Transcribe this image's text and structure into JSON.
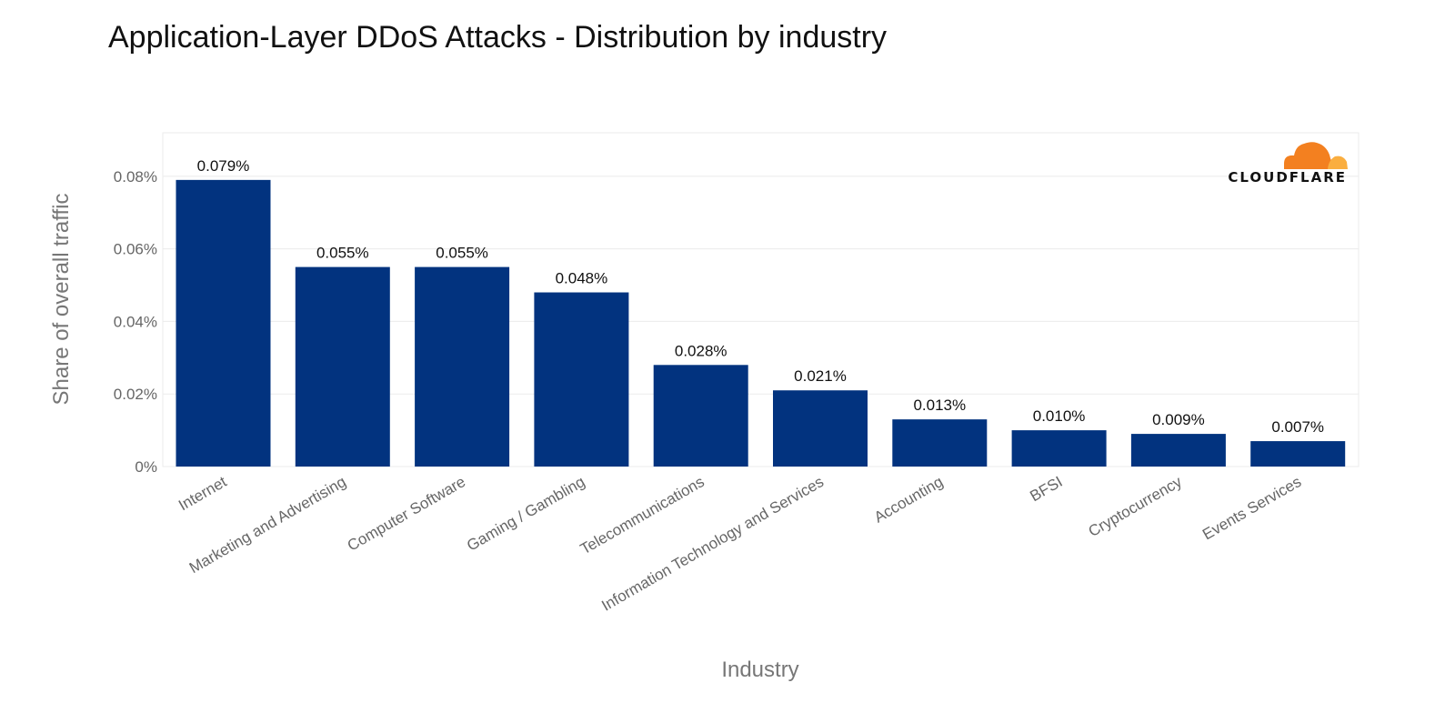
{
  "chart_data": {
    "type": "bar",
    "title": "Application-Layer DDoS Attacks - Distribution by industry",
    "xlabel": "Industry",
    "ylabel": "Share of overall traffic",
    "ylim": [
      0,
      0.092
    ],
    "yticks": [
      0,
      0.02,
      0.04,
      0.06,
      0.08
    ],
    "ytick_labels": [
      "0%",
      "0.02%",
      "0.04%",
      "0.06%",
      "0.08%"
    ],
    "grid": true,
    "categories": [
      "Internet",
      "Marketing and Advertising",
      "Computer Software",
      "Gaming / Gambling",
      "Telecommunications",
      "Information Technology and Services",
      "Accounting",
      "BFSI",
      "Cryptocurrency",
      "Events Services"
    ],
    "values": [
      0.079,
      0.055,
      0.055,
      0.048,
      0.028,
      0.021,
      0.013,
      0.01,
      0.009,
      0.007
    ],
    "value_labels": [
      "0.079%",
      "0.055%",
      "0.055%",
      "0.048%",
      "0.028%",
      "0.021%",
      "0.013%",
      "0.010%",
      "0.009%",
      "0.007%"
    ],
    "bar_color": "#02337f",
    "gridline_color": "#ebebeb"
  },
  "logo": {
    "text": "CLOUDFLARE",
    "icon": "cloud-icon",
    "cloud_color": "#f38020",
    "cloud_light_color": "#faae40"
  }
}
